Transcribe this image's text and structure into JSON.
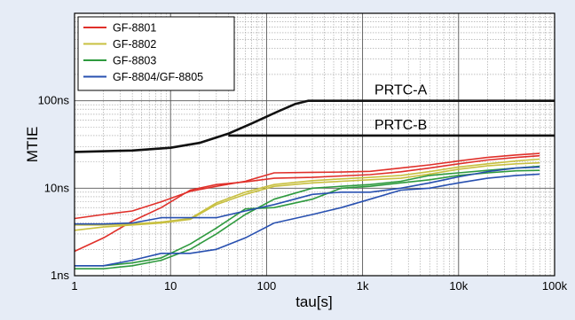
{
  "chart_data": {
    "type": "line",
    "title": "",
    "xlabel": "tau[s]",
    "ylabel": "MTIE",
    "x_scale": "log",
    "y_scale": "log",
    "xlim": [
      1,
      100000
    ],
    "ylim": [
      1,
      1000
    ],
    "x_ticks": [
      {
        "value": 1,
        "label": "1"
      },
      {
        "value": 10,
        "label": "10"
      },
      {
        "value": 100,
        "label": "100"
      },
      {
        "value": 1000,
        "label": "1k"
      },
      {
        "value": 10000,
        "label": "10k"
      },
      {
        "value": 100000,
        "label": "100k"
      }
    ],
    "y_ticks": [
      {
        "value": 1,
        "label": "1ns"
      },
      {
        "value": 10,
        "label": "10ns"
      },
      {
        "value": 100,
        "label": "100ns"
      }
    ],
    "grid": true,
    "legend_position": "top-left",
    "series": [
      {
        "name": "GF-8801",
        "color": "#e0302a",
        "points": [
          [
            1,
            1.9
          ],
          [
            2,
            2.7
          ],
          [
            4,
            4.2
          ],
          [
            8,
            6.0
          ],
          [
            16,
            9.5
          ],
          [
            30,
            11.0
          ],
          [
            60,
            11.8
          ],
          [
            120,
            13.0
          ],
          [
            300,
            13.3
          ],
          [
            600,
            13.8
          ],
          [
            1200,
            14.3
          ],
          [
            2500,
            15.4
          ],
          [
            5000,
            17.0
          ],
          [
            10000,
            19.0
          ],
          [
            20000,
            21.0
          ],
          [
            40000,
            22.5
          ],
          [
            70000,
            23.5
          ]
        ]
      },
      {
        "name": "GF-8801",
        "color": "#e0302a",
        "points": [
          [
            1,
            4.5
          ],
          [
            2,
            5.0
          ],
          [
            4,
            5.5
          ],
          [
            8,
            7.0
          ],
          [
            16,
            9.2
          ],
          [
            30,
            10.5
          ],
          [
            60,
            12.0
          ],
          [
            120,
            15.0
          ],
          [
            300,
            15.2
          ],
          [
            600,
            15.3
          ],
          [
            1200,
            15.6
          ],
          [
            2500,
            17.0
          ],
          [
            5000,
            18.5
          ],
          [
            10000,
            20.5
          ],
          [
            20000,
            22.5
          ],
          [
            40000,
            24.0
          ],
          [
            70000,
            25.0
          ]
        ]
      },
      {
        "name": "GF-8802",
        "color": "#c8c040",
        "points": [
          [
            1,
            3.3
          ],
          [
            2,
            3.6
          ],
          [
            4,
            3.8
          ],
          [
            8,
            4.0
          ],
          [
            16,
            4.4
          ],
          [
            30,
            6.5
          ],
          [
            60,
            8.5
          ],
          [
            120,
            10.5
          ],
          [
            300,
            11.5
          ],
          [
            600,
            12.0
          ],
          [
            1200,
            12.5
          ],
          [
            2500,
            13.0
          ],
          [
            5000,
            14.5
          ],
          [
            10000,
            16.5
          ],
          [
            20000,
            18.0
          ],
          [
            40000,
            19.0
          ],
          [
            70000,
            19.5
          ]
        ]
      },
      {
        "name": "GF-8802",
        "color": "#c8c040",
        "points": [
          [
            1,
            3.8
          ],
          [
            2,
            3.8
          ],
          [
            4,
            3.9
          ],
          [
            8,
            4.1
          ],
          [
            16,
            4.5
          ],
          [
            30,
            6.8
          ],
          [
            60,
            9.0
          ],
          [
            120,
            11.0
          ],
          [
            300,
            12.2
          ],
          [
            600,
            12.8
          ],
          [
            1200,
            13.3
          ],
          [
            2500,
            14.0
          ],
          [
            5000,
            15.5
          ],
          [
            10000,
            17.5
          ],
          [
            20000,
            19.0
          ],
          [
            40000,
            20.5
          ],
          [
            70000,
            21.5
          ]
        ]
      },
      {
        "name": "GF-8803",
        "color": "#2e9a3e",
        "points": [
          [
            1,
            1.2
          ],
          [
            2,
            1.2
          ],
          [
            4,
            1.3
          ],
          [
            8,
            1.5
          ],
          [
            16,
            2.0
          ],
          [
            30,
            3.0
          ],
          [
            60,
            5.0
          ],
          [
            120,
            7.5
          ],
          [
            300,
            10.0
          ],
          [
            600,
            10.5
          ],
          [
            1200,
            11.0
          ],
          [
            2500,
            12.0
          ],
          [
            5000,
            14.0
          ],
          [
            10000,
            15.0
          ],
          [
            20000,
            16.0
          ],
          [
            40000,
            17.0
          ],
          [
            70000,
            17.8
          ]
        ]
      },
      {
        "name": "GF-8803",
        "color": "#2e9a3e",
        "points": [
          [
            1,
            1.3
          ],
          [
            2,
            1.3
          ],
          [
            4,
            1.4
          ],
          [
            8,
            1.6
          ],
          [
            16,
            2.3
          ],
          [
            30,
            3.5
          ],
          [
            60,
            5.8
          ],
          [
            120,
            6.0
          ],
          [
            300,
            7.5
          ],
          [
            600,
            10.0
          ],
          [
            1200,
            10.5
          ],
          [
            2500,
            11.5
          ],
          [
            5000,
            12.5
          ],
          [
            10000,
            14.0
          ],
          [
            20000,
            15.0
          ],
          [
            40000,
            15.8
          ],
          [
            70000,
            16.0
          ]
        ]
      },
      {
        "name": "GF-8804/GF-8805",
        "color": "#2850b0",
        "points": [
          [
            1,
            1.3
          ],
          [
            2,
            1.3
          ],
          [
            4,
            1.5
          ],
          [
            8,
            1.8
          ],
          [
            16,
            1.8
          ],
          [
            30,
            2.0
          ],
          [
            60,
            2.7
          ],
          [
            120,
            4.0
          ],
          [
            300,
            5.0
          ],
          [
            600,
            6.0
          ],
          [
            1200,
            7.5
          ],
          [
            2500,
            9.5
          ],
          [
            5000,
            10.0
          ],
          [
            10000,
            11.5
          ],
          [
            20000,
            13.0
          ],
          [
            40000,
            14.0
          ],
          [
            70000,
            14.5
          ]
        ]
      },
      {
        "name": "GF-8804/GF-8805",
        "color": "#2850b0",
        "points": [
          [
            1,
            3.9
          ],
          [
            2,
            3.9
          ],
          [
            4,
            4.0
          ],
          [
            8,
            4.6
          ],
          [
            16,
            4.6
          ],
          [
            30,
            4.6
          ],
          [
            60,
            5.5
          ],
          [
            120,
            6.5
          ],
          [
            300,
            8.5
          ],
          [
            600,
            9.0
          ],
          [
            1200,
            9.0
          ],
          [
            2500,
            10.0
          ],
          [
            5000,
            11.5
          ],
          [
            10000,
            13.5
          ],
          [
            20000,
            15.5
          ],
          [
            40000,
            17.0
          ],
          [
            70000,
            17.5
          ]
        ]
      }
    ],
    "reference_lines": [
      {
        "name": "PRTC-A",
        "color": "#111111",
        "points": [
          [
            1,
            26
          ],
          [
            4,
            27
          ],
          [
            10,
            29
          ],
          [
            20,
            33
          ],
          [
            40,
            42
          ],
          [
            70,
            55
          ],
          [
            130,
            75
          ],
          [
            200,
            92
          ],
          [
            270,
            100
          ],
          [
            100000,
            100
          ]
        ]
      },
      {
        "name": "PRTC-B",
        "color": "#111111",
        "points": [
          [
            40,
            40
          ],
          [
            100000,
            40
          ]
        ]
      }
    ]
  }
}
